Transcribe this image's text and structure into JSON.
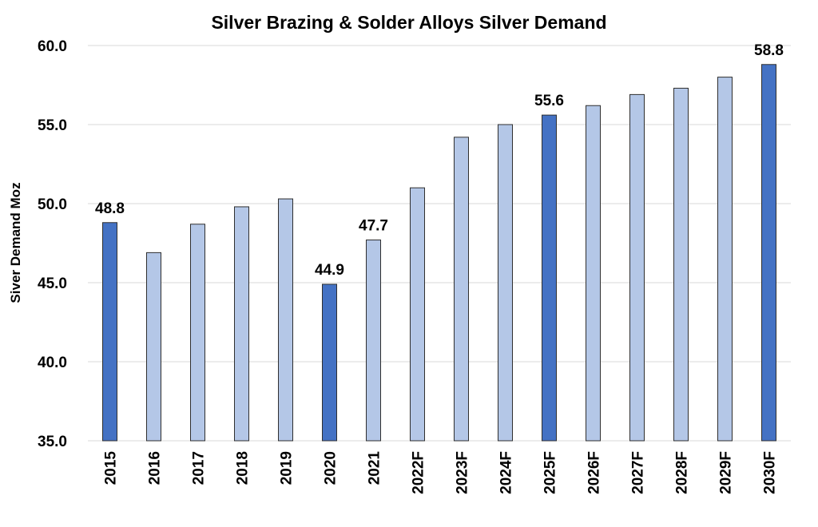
{
  "chart_data": {
    "type": "bar",
    "title": "Silver Brazing & Solder Alloys Silver Demand",
    "xlabel": "",
    "ylabel": "Siver Demand Moz",
    "ylim": [
      35.0,
      60.0
    ],
    "yticks": [
      "35.0",
      "40.0",
      "45.0",
      "50.0",
      "55.0",
      "60.0"
    ],
    "grid": true,
    "categories": [
      "2015",
      "2016",
      "2017",
      "2018",
      "2019",
      "2020",
      "2021",
      "2022F",
      "2023F",
      "2024F",
      "2025F",
      "2026F",
      "2027F",
      "2028F",
      "2029F",
      "2030F"
    ],
    "values": [
      48.8,
      46.9,
      48.7,
      49.8,
      50.3,
      44.9,
      47.7,
      51.0,
      54.2,
      55.0,
      55.6,
      56.2,
      56.9,
      57.3,
      58.0,
      58.8
    ],
    "highlighted": [
      true,
      false,
      false,
      false,
      false,
      true,
      false,
      false,
      false,
      false,
      true,
      false,
      false,
      false,
      false,
      true
    ],
    "data_labels": [
      "48.8",
      "",
      "",
      "",
      "",
      "44.9",
      "47.7",
      "",
      "",
      "",
      "55.6",
      "",
      "",
      "",
      "",
      "58.8"
    ],
    "colors": {
      "highlight": "#4472C4",
      "normal": "#B4C7E7",
      "border": "#2F2F2F",
      "grid": "#D9D9D9"
    }
  }
}
